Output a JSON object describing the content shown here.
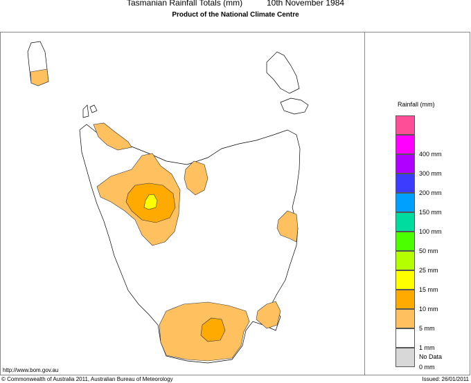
{
  "header": {
    "title": "Tasmanian Rainfall Totals (mm)",
    "date": "10th November 1984",
    "subtitle": "Product of the National Climate Centre"
  },
  "legend": {
    "title": "Rainfall (mm)",
    "swatches": [
      {
        "color": "#ff4e98"
      },
      {
        "color": "#ff00ff",
        "label": "400 mm"
      },
      {
        "color": "#b000ff",
        "label": "300 mm"
      },
      {
        "color": "#3c3cff",
        "label": "200 mm"
      },
      {
        "color": "#00a0ff",
        "label": "150 mm"
      },
      {
        "color": "#00dca0",
        "label": "100 mm"
      },
      {
        "color": "#4cff00",
        "label": "50 mm"
      },
      {
        "color": "#b4ff00",
        "label": "25 mm"
      },
      {
        "color": "#ffff00",
        "label": "15 mm"
      },
      {
        "color": "#ffaa00",
        "label": "10 mm"
      },
      {
        "color": "#ffc060",
        "label": "5 mm"
      },
      {
        "color": "#ffffff",
        "label": "1 mm"
      },
      {
        "color": "#d8d8d8",
        "label": "0 mm"
      }
    ],
    "nodata_label": "No Data"
  },
  "footer": {
    "url": "http://www.bom.gov.au",
    "copyright": "© Commonwealth of Australia 2011, Australian Bureau of Meteorology",
    "issued": "Issued: 26/01/2011"
  }
}
